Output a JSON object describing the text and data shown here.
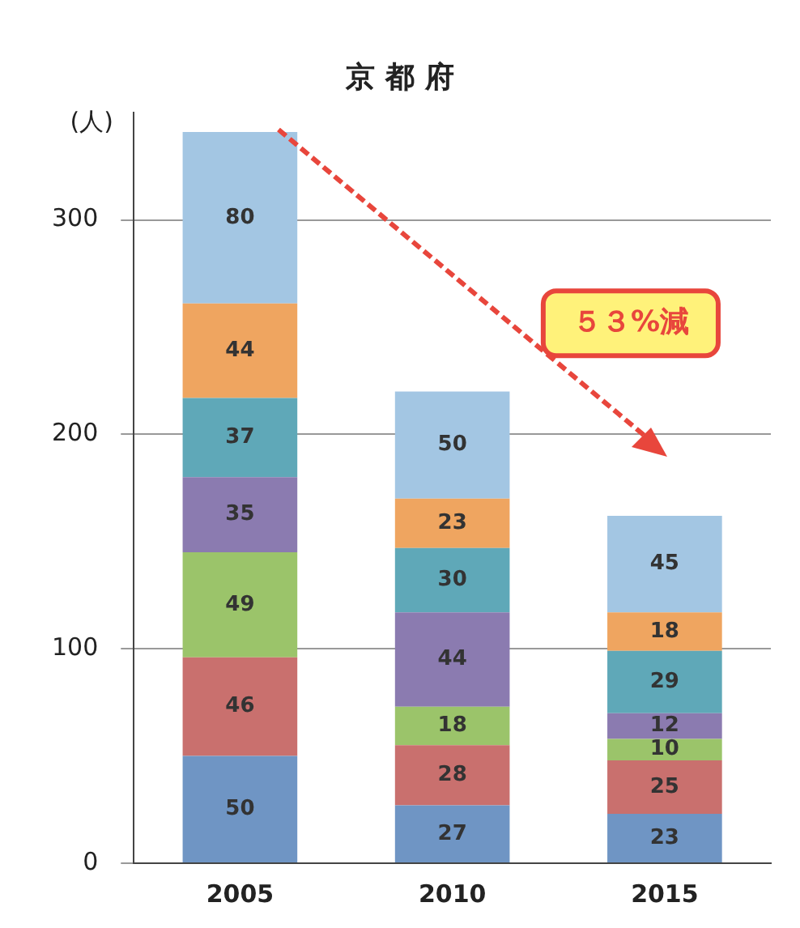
{
  "chart_data": {
    "type": "bar",
    "title": "京 都 府",
    "ylabel": "(人)",
    "categories": [
      "2005",
      "2010",
      "2015"
    ],
    "stacked": true,
    "data_labels": true,
    "grid": "y",
    "legend": false,
    "ylim": [
      0,
      350
    ],
    "yticks": [
      0,
      100,
      200,
      300
    ],
    "annotations": [
      "５３%減"
    ],
    "series": [
      {
        "color": "#6f95c4",
        "values": [
          50,
          27,
          23
        ]
      },
      {
        "color": "#c9706e",
        "values": [
          46,
          28,
          25
        ]
      },
      {
        "color": "#9bc46a",
        "values": [
          49,
          18,
          10
        ]
      },
      {
        "color": "#8b7bb0",
        "values": [
          35,
          44,
          12
        ]
      },
      {
        "color": "#5fa8b8",
        "values": [
          37,
          30,
          29
        ]
      },
      {
        "color": "#efa560",
        "values": [
          44,
          23,
          18
        ]
      },
      {
        "color": "#a3c6e3",
        "values": [
          80,
          50,
          45
        ]
      }
    ]
  }
}
